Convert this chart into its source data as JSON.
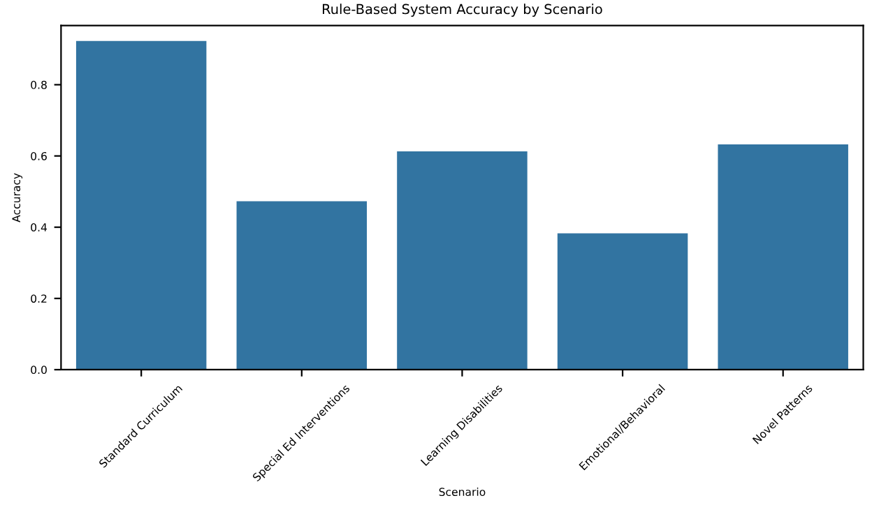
{
  "chart_data": {
    "type": "bar",
    "title": "Rule-Based System Accuracy by Scenario",
    "xlabel": "Scenario",
    "ylabel": "Accuracy",
    "categories": [
      "Standard Curriculum",
      "Special Ed Interventions",
      "Learning Disabilities",
      "Emotional/Behavioral",
      "Novel Patterns"
    ],
    "values": [
      0.92,
      0.47,
      0.61,
      0.38,
      0.63
    ],
    "color": "#3274a1",
    "ylim": [
      0,
      0.966
    ],
    "yticks": [
      {
        "value": 0,
        "label": "0.0"
      },
      {
        "value": 0.2,
        "label": "0.2"
      },
      {
        "value": 0.4,
        "label": "0.4"
      },
      {
        "value": 0.6,
        "label": "0.6"
      },
      {
        "value": 0.8,
        "label": "0.8"
      }
    ],
    "grid": false
  }
}
